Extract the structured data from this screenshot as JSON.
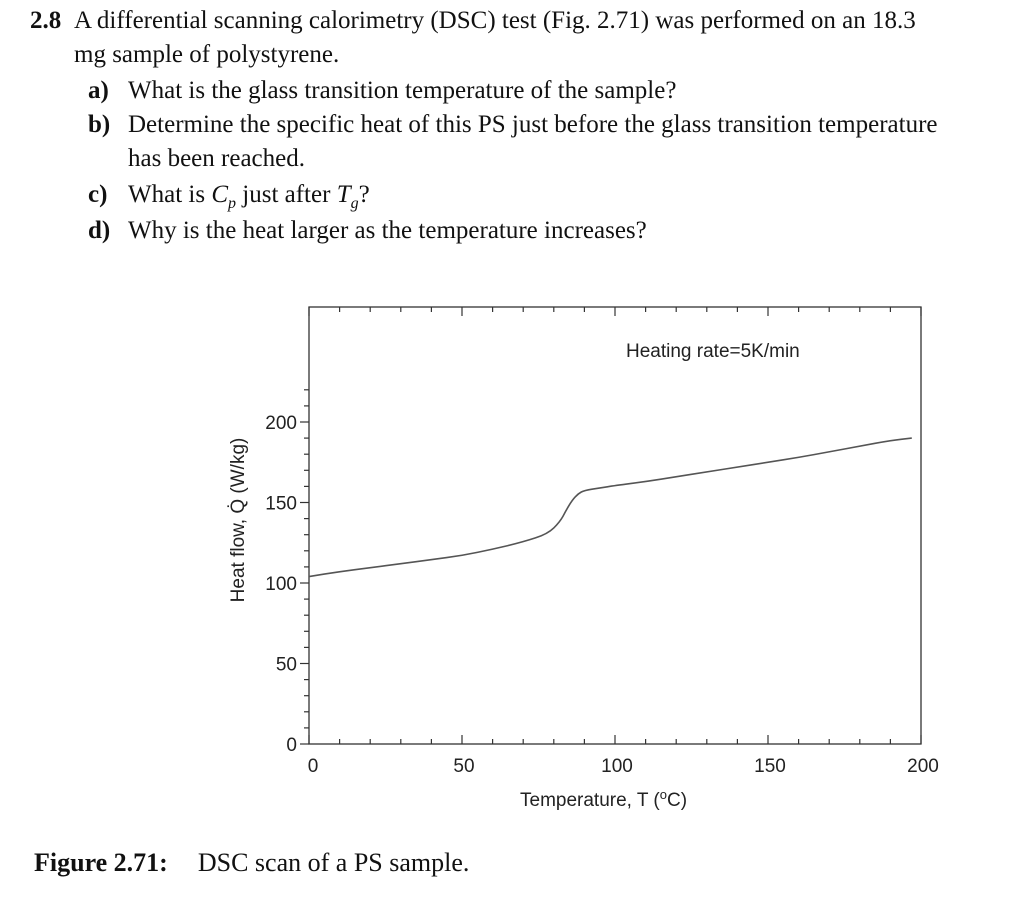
{
  "problem": {
    "number": "2.8",
    "stem_line1": "A differential scanning calorimetry (DSC) test (Fig. 2.71) was performed on an 18.3",
    "stem_line2": "mg sample of polystyrene.",
    "parts": [
      {
        "label": "a)",
        "text": "What is the glass transition temperature of the sample?"
      },
      {
        "label": "b)",
        "text_line1": "Determine the specific heat of this PS just before the glass transition temperature",
        "text_line2": "has been reached."
      },
      {
        "label": "c)",
        "text_pre": "What is ",
        "cp_main": "C",
        "cp_sub": "p",
        "text_mid": " just after ",
        "tg_main": "T",
        "tg_sub": "g",
        "text_post": "?"
      },
      {
        "label": "d)",
        "text": "Why is the heat larger as the temperature increases?"
      }
    ]
  },
  "figure": {
    "caption_label": "Figure 2.71:",
    "caption_text": "DSC scan of a PS sample."
  },
  "chart_data": {
    "type": "line",
    "annotation": "Heating rate=5K/min",
    "xlabel": "Temperature, T  (",
    "xlabel_unit_sup": "o",
    "xlabel_unit_rest": "C)",
    "ylabel": "Heat flow, Q̇ (W/kg)",
    "xlim": [
      0,
      200
    ],
    "ylim": [
      0,
      220
    ],
    "xticks": [
      0,
      50,
      100,
      150,
      200
    ],
    "yticks": [
      0,
      50,
      100,
      150,
      200
    ],
    "grid": false,
    "series": [
      {
        "x": [
          0,
          10,
          20,
          30,
          40,
          50,
          60,
          70,
          78,
          82,
          84,
          86,
          88,
          90,
          95,
          100,
          110,
          120,
          130,
          140,
          150,
          160,
          170,
          180,
          190,
          197
        ],
        "y": [
          104,
          107,
          109.5,
          112,
          114.5,
          117,
          121,
          125.5,
          130.5,
          138,
          145,
          151.5,
          155.5,
          157.5,
          159,
          160.5,
          163,
          166,
          169,
          172,
          175,
          178,
          181.5,
          185,
          188.5,
          190
        ]
      }
    ]
  }
}
